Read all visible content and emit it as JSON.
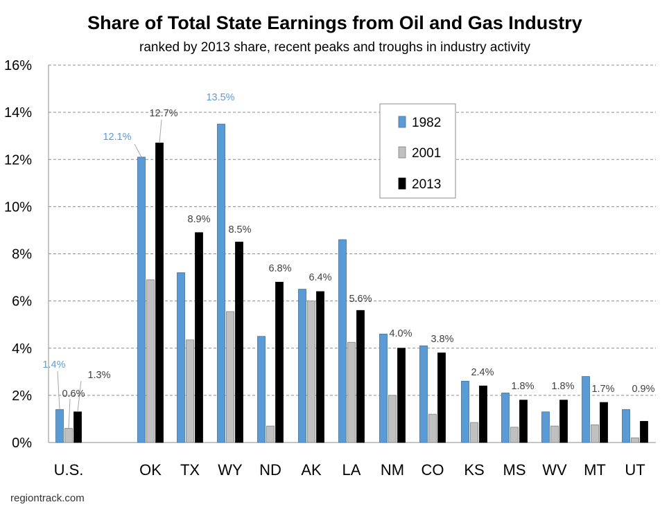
{
  "chart_data": {
    "type": "bar",
    "title": "Share of Total State Earnings from Oil and Gas Industry",
    "subtitle": "ranked by 2013 share, recent peaks and troughs in industry activity",
    "source": "regiontrack.com",
    "categories": [
      "U.S.",
      "OK",
      "TX",
      "WY",
      "ND",
      "AK",
      "LA",
      "NM",
      "CO",
      "KS",
      "MS",
      "WV",
      "MT",
      "UT"
    ],
    "series": [
      {
        "name": "1982",
        "color": "#5b9bd5",
        "values": [
          1.4,
          12.1,
          7.2,
          13.5,
          4.5,
          6.5,
          8.6,
          4.6,
          4.1,
          2.6,
          2.1,
          1.3,
          2.8,
          1.4
        ]
      },
      {
        "name": "2001",
        "color": "#c0c0c0",
        "values": [
          0.6,
          6.9,
          4.35,
          5.55,
          0.7,
          6.0,
          4.25,
          2.0,
          1.2,
          0.85,
          0.65,
          0.7,
          0.75,
          0.2
        ]
      },
      {
        "name": "2013",
        "color": "#000000",
        "values": [
          1.3,
          12.7,
          8.9,
          8.5,
          6.8,
          6.4,
          5.6,
          4.0,
          3.8,
          2.4,
          1.8,
          1.8,
          1.7,
          0.9
        ]
      }
    ],
    "ylim": [
      0,
      16
    ],
    "yticks": [
      "0%",
      "2%",
      "4%",
      "6%",
      "8%",
      "10%",
      "12%",
      "14%",
      "16%"
    ],
    "grid": true,
    "legend_position": "top-center",
    "data_labels": [
      {
        "text": "1.4%",
        "category": 0,
        "series": 0,
        "color": "#5b9bd5"
      },
      {
        "text": "0.6%",
        "category": 0,
        "series": 1,
        "color": "#404040"
      },
      {
        "text": "1.3%",
        "category": 0,
        "series": 2,
        "color": "#404040"
      },
      {
        "text": "12.1%",
        "category": 1,
        "series": 0,
        "color": "#5b9bd5"
      },
      {
        "text": "12.7%",
        "category": 1,
        "series": 2,
        "color": "#404040"
      },
      {
        "text": "13.5%",
        "category": 3,
        "series": 0,
        "color": "#5b9bd5"
      },
      {
        "text": "8.9%",
        "category": 2,
        "series": 2,
        "color": "#404040"
      },
      {
        "text": "8.5%",
        "category": 3,
        "series": 2,
        "color": "#404040"
      },
      {
        "text": "6.8%",
        "category": 4,
        "series": 2,
        "color": "#404040"
      },
      {
        "text": "6.4%",
        "category": 5,
        "series": 2,
        "color": "#404040"
      },
      {
        "text": "5.6%",
        "category": 6,
        "series": 2,
        "color": "#404040"
      },
      {
        "text": "4.0%",
        "category": 7,
        "series": 2,
        "color": "#404040"
      },
      {
        "text": "3.8%",
        "category": 8,
        "series": 2,
        "color": "#404040"
      },
      {
        "text": "2.4%",
        "category": 9,
        "series": 2,
        "color": "#404040"
      },
      {
        "text": "1.8%",
        "category": 10,
        "series": 2,
        "color": "#404040"
      },
      {
        "text": "1.8%",
        "category": 11,
        "series": 2,
        "color": "#404040"
      },
      {
        "text": "1.7%",
        "category": 12,
        "series": 2,
        "color": "#404040"
      },
      {
        "text": "0.9%",
        "category": 13,
        "series": 2,
        "color": "#404040"
      }
    ]
  }
}
